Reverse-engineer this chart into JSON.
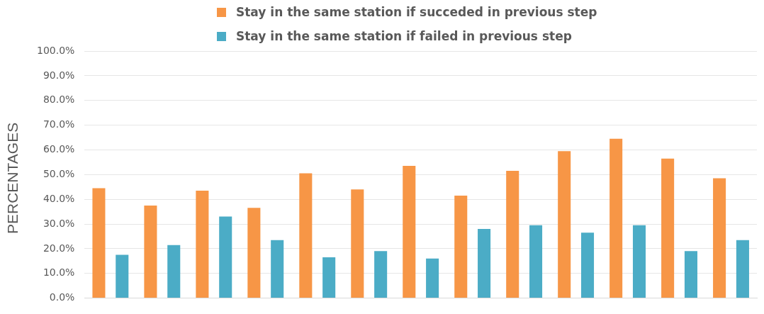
{
  "chart_data": {
    "type": "bar",
    "ylabel": "PERCENTAGES",
    "categories": [
      null,
      null,
      null,
      null,
      null,
      null,
      null,
      null,
      null,
      null,
      null,
      null,
      null
    ],
    "series": [
      {
        "name": "Stay in the same station if succeded in previous step",
        "color": "#f79646",
        "values": [
          44.5,
          37.5,
          43.5,
          36.5,
          50.5,
          44,
          53.5,
          41.5,
          51.5,
          59.5,
          64.5,
          56.5,
          48.5
        ]
      },
      {
        "name": "Stay in the same station if failed in previous step",
        "color": "#4bacc6",
        "values": [
          17.5,
          21.5,
          33,
          23.5,
          16.5,
          19,
          16,
          28,
          29.5,
          26.5,
          29.5,
          19,
          23.5
        ]
      }
    ],
    "ylim": [
      0,
      100
    ],
    "yticks": [
      {
        "value": 0,
        "label": "0.0%"
      },
      {
        "value": 10,
        "label": "10.0%"
      },
      {
        "value": 20,
        "label": "20.0%"
      },
      {
        "value": 30,
        "label": "30.0%"
      },
      {
        "value": 40,
        "label": "40.0%"
      },
      {
        "value": 50,
        "label": "50.0%"
      },
      {
        "value": 60,
        "label": "60.0%"
      },
      {
        "value": 70,
        "label": "70.0%"
      },
      {
        "value": 80,
        "label": "80.0%"
      },
      {
        "value": 90,
        "label": "90.0%"
      },
      {
        "value": 100,
        "label": "100.0%"
      }
    ],
    "grid": "y",
    "legend": "top"
  }
}
